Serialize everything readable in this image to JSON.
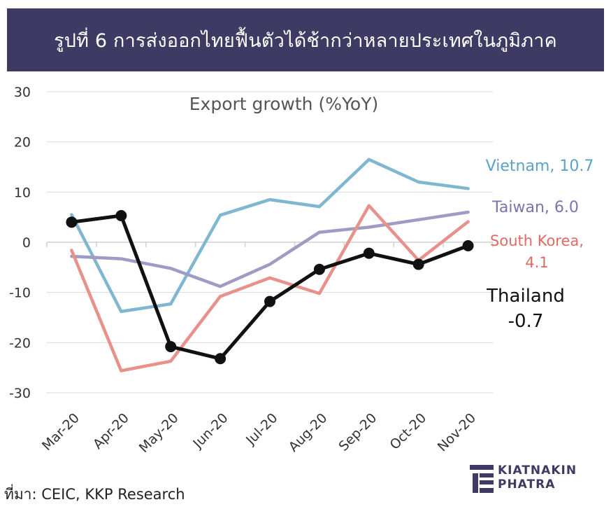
{
  "title": "รูปที่ 6 การส่งออกไทยฟื้นตัวได้ช้ากว่าหลายประเทศในภูมิภาค",
  "source": "ที่มา: CEIC, KKP Research",
  "logo": {
    "line1": "KIATNAKIN",
    "line2": "PHATRA",
    "icon": "kkp-logo-icon"
  },
  "chart_data": {
    "type": "line",
    "title": "Export growth (%YoY)",
    "xlabel": "",
    "ylabel": "",
    "categories": [
      "Mar-20",
      "Apr-20",
      "May-20",
      "Jun-20",
      "Jul-20",
      "Aug-20",
      "Sep-20",
      "Oct-20",
      "Nov-20"
    ],
    "ylim": [
      -30,
      30
    ],
    "yticks": [
      30,
      20,
      10,
      0,
      -10,
      -20,
      -30
    ],
    "grid": true,
    "series": [
      {
        "name": "Vietnam",
        "label": "Vietnam, 10.7",
        "color": "#7fb6d0",
        "markers": false,
        "values": [
          5.5,
          -13.8,
          -12.3,
          5.4,
          8.5,
          7.1,
          16.5,
          12.0,
          10.7
        ]
      },
      {
        "name": "Taiwan",
        "label": "Taiwan, 6.0",
        "color": "#9f9bc4",
        "markers": false,
        "values": [
          -2.8,
          -3.3,
          -5.2,
          -8.8,
          -4.4,
          2.0,
          3.0,
          4.5,
          6.0
        ]
      },
      {
        "name": "South Korea",
        "label": "South Korea,\n4.1",
        "color": "#e8908a",
        "markers": false,
        "values": [
          -1.6,
          -25.6,
          -23.7,
          -10.8,
          -7.1,
          -10.2,
          7.3,
          -3.6,
          4.1
        ]
      },
      {
        "name": "Thailand",
        "label": "Thailand\n-0.7",
        "color": "#111111",
        "markers": true,
        "values": [
          4.0,
          5.3,
          -20.8,
          -23.2,
          -11.8,
          -5.4,
          -2.2,
          -4.4,
          -0.7
        ]
      }
    ]
  }
}
